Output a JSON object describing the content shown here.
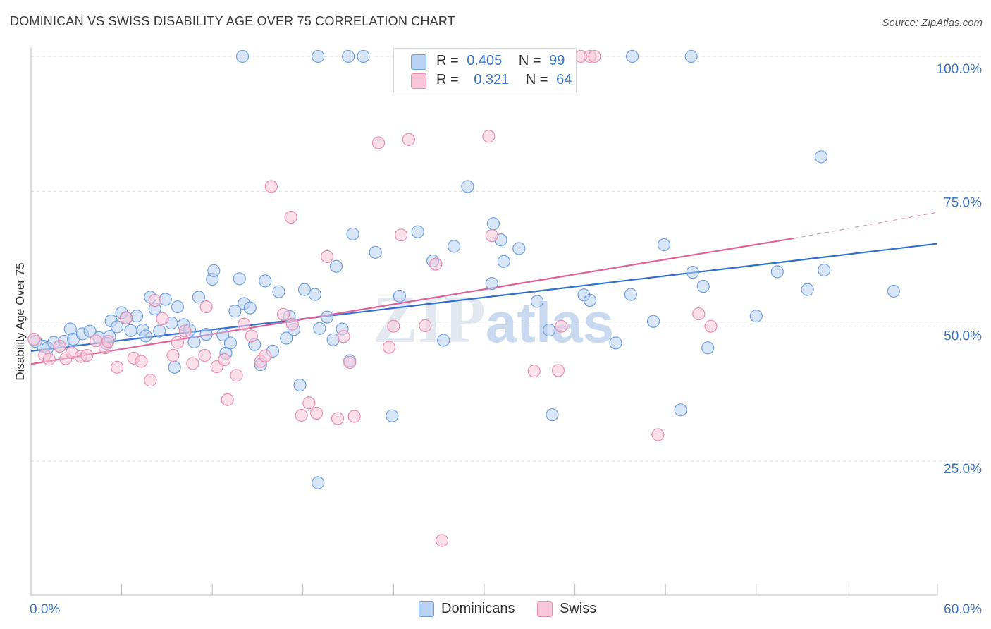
{
  "title": "DOMINICAN VS SWISS DISABILITY AGE OVER 75 CORRELATION CHART",
  "source": "Source: ZipAtlas.com",
  "watermark": "ZIPatlas",
  "legend": {
    "rows": [
      {
        "r_label": "R =",
        "r_value": "0.405",
        "n_label": "N =",
        "n_value": "99"
      },
      {
        "r_label": "R =",
        "r_value": "0.321",
        "n_label": "N =",
        "n_value": "64"
      }
    ]
  },
  "bottom_legend": [
    "Dominicans",
    "Swiss"
  ],
  "chart_data": {
    "type": "scatter",
    "title": "DOMINICAN VS SWISS DISABILITY AGE OVER 75 CORRELATION CHART",
    "xlabel": "",
    "ylabel": "Disability Age Over 75",
    "xlim": [
      0,
      60
    ],
    "ylim": [
      0,
      103
    ],
    "x_tick_labels": [
      "0.0%",
      "60.0%"
    ],
    "y_ticks": [
      25,
      50,
      75,
      100
    ],
    "y_tick_labels": [
      "25.0%",
      "50.0%",
      "75.0%",
      "100.0%"
    ],
    "grid": true,
    "legend_position": "top-center",
    "series": [
      {
        "name": "Dominicans",
        "color": "#6fa0e3",
        "fill": "#b9d1f3",
        "line_color": "#2f6fd0",
        "trend": {
          "x": [
            0,
            60
          ],
          "y": [
            45.4,
            65.3
          ]
        },
        "points": [
          [
            0.3,
            47.2
          ],
          [
            0.8,
            46.3
          ],
          [
            1.1,
            46.0
          ],
          [
            1.5,
            47.0
          ],
          [
            1.9,
            46.3
          ],
          [
            2.2,
            47.2
          ],
          [
            2.6,
            49.5
          ],
          [
            2.8,
            47.6
          ],
          [
            3.4,
            48.6
          ],
          [
            3.9,
            49.1
          ],
          [
            4.5,
            47.9
          ],
          [
            5.0,
            46.8
          ],
          [
            5.2,
            48.1
          ],
          [
            5.3,
            51.0
          ],
          [
            5.7,
            49.9
          ],
          [
            6.0,
            52.5
          ],
          [
            6.3,
            51.6
          ],
          [
            6.6,
            49.2
          ],
          [
            7.0,
            51.9
          ],
          [
            7.4,
            49.3
          ],
          [
            7.6,
            48.2
          ],
          [
            7.9,
            55.4
          ],
          [
            8.2,
            53.2
          ],
          [
            8.5,
            49.1
          ],
          [
            8.9,
            55.0
          ],
          [
            9.3,
            50.6
          ],
          [
            9.5,
            42.4
          ],
          [
            9.7,
            53.6
          ],
          [
            10.1,
            50.3
          ],
          [
            10.5,
            49.3
          ],
          [
            10.8,
            47.1
          ],
          [
            11.1,
            55.4
          ],
          [
            11.6,
            48.5
          ],
          [
            12.0,
            58.7
          ],
          [
            12.1,
            60.3
          ],
          [
            12.7,
            48.4
          ],
          [
            12.9,
            45.0
          ],
          [
            13.2,
            46.9
          ],
          [
            13.5,
            52.8
          ],
          [
            13.8,
            58.8
          ],
          [
            14.1,
            54.2
          ],
          [
            14.5,
            53.4
          ],
          [
            14.8,
            46.6
          ],
          [
            15.2,
            42.9
          ],
          [
            15.5,
            58.4
          ],
          [
            16.0,
            45.4
          ],
          [
            16.4,
            56.4
          ],
          [
            16.9,
            47.8
          ],
          [
            17.1,
            51.8
          ],
          [
            17.4,
            49.4
          ],
          [
            17.8,
            39.1
          ],
          [
            18.1,
            56.8
          ],
          [
            18.8,
            55.9
          ],
          [
            19.1,
            49.6
          ],
          [
            19.6,
            51.7
          ],
          [
            20.0,
            47.5
          ],
          [
            20.2,
            61.1
          ],
          [
            20.6,
            49.5
          ],
          [
            21.1,
            43.6
          ],
          [
            21.3,
            67.1
          ],
          [
            22.8,
            63.7
          ],
          [
            23.9,
            33.4
          ],
          [
            24.4,
            55.6
          ],
          [
            25.6,
            67.5
          ],
          [
            26.6,
            62.1
          ],
          [
            27.3,
            47.4
          ],
          [
            28.0,
            64.8
          ],
          [
            28.9,
            75.9
          ],
          [
            30.5,
            57.9
          ],
          [
            30.6,
            69.0
          ],
          [
            31.1,
            66.0
          ],
          [
            31.3,
            62.0
          ],
          [
            32.3,
            64.4
          ],
          [
            33.5,
            54.6
          ],
          [
            34.3,
            49.3
          ],
          [
            34.5,
            33.6
          ],
          [
            36.6,
            55.8
          ],
          [
            37.0,
            54.8
          ],
          [
            38.7,
            46.9
          ],
          [
            39.7,
            55.9
          ],
          [
            41.2,
            50.9
          ],
          [
            41.9,
            65.1
          ],
          [
            43.0,
            34.5
          ],
          [
            43.8,
            60.0
          ],
          [
            44.5,
            57.4
          ],
          [
            44.8,
            46.0
          ],
          [
            48.0,
            51.9
          ],
          [
            49.4,
            60.1
          ],
          [
            51.4,
            56.8
          ],
          [
            52.3,
            81.4
          ],
          [
            52.5,
            60.4
          ],
          [
            57.1,
            56.5
          ],
          [
            39.8,
            100
          ],
          [
            43.7,
            100
          ],
          [
            14.0,
            100
          ],
          [
            19.0,
            100
          ],
          [
            21.0,
            100
          ],
          [
            22.0,
            100
          ],
          [
            19.0,
            21.0
          ]
        ]
      },
      {
        "name": "Swiss",
        "color": "#ea8fb0",
        "fill": "#f8c6d8",
        "line_color": "#e0619a",
        "trend": {
          "x": [
            0,
            50.5
          ],
          "y": [
            43.0,
            66.3
          ]
        },
        "trend_dashed": {
          "x": [
            50.5,
            60
          ],
          "y": [
            66.3,
            71.1
          ]
        },
        "points": [
          [
            0.2,
            47.6
          ],
          [
            0.9,
            44.6
          ],
          [
            1.2,
            43.9
          ],
          [
            1.9,
            46.3
          ],
          [
            2.3,
            44.0
          ],
          [
            2.7,
            45.1
          ],
          [
            3.3,
            44.4
          ],
          [
            3.7,
            44.6
          ],
          [
            4.3,
            47.3
          ],
          [
            4.9,
            46.0
          ],
          [
            5.1,
            47.2
          ],
          [
            5.7,
            42.4
          ],
          [
            6.3,
            51.5
          ],
          [
            6.8,
            44.1
          ],
          [
            7.3,
            43.5
          ],
          [
            7.9,
            40.0
          ],
          [
            8.2,
            54.8
          ],
          [
            8.7,
            51.4
          ],
          [
            9.4,
            44.6
          ],
          [
            9.7,
            47.0
          ],
          [
            10.2,
            49.1
          ],
          [
            10.7,
            43.1
          ],
          [
            11.5,
            44.6
          ],
          [
            11.6,
            53.6
          ],
          [
            12.3,
            42.5
          ],
          [
            12.8,
            43.8
          ],
          [
            13.0,
            36.4
          ],
          [
            13.6,
            40.9
          ],
          [
            14.1,
            50.4
          ],
          [
            14.6,
            48.2
          ],
          [
            15.2,
            43.5
          ],
          [
            15.5,
            44.5
          ],
          [
            15.9,
            75.9
          ],
          [
            16.7,
            52.2
          ],
          [
            17.2,
            70.2
          ],
          [
            17.3,
            50.4
          ],
          [
            17.9,
            33.5
          ],
          [
            18.4,
            35.8
          ],
          [
            18.9,
            33.9
          ],
          [
            19.6,
            62.9
          ],
          [
            20.3,
            32.9
          ],
          [
            20.7,
            48.1
          ],
          [
            21.1,
            43.3
          ],
          [
            21.4,
            33.3
          ],
          [
            23.0,
            84.0
          ],
          [
            23.7,
            46.1
          ],
          [
            24.0,
            50.0
          ],
          [
            24.5,
            66.9
          ],
          [
            25.0,
            84.6
          ],
          [
            26.1,
            50.1
          ],
          [
            26.8,
            61.5
          ],
          [
            27.2,
            10.3
          ],
          [
            30.3,
            85.2
          ],
          [
            30.5,
            66.8
          ],
          [
            33.3,
            41.7
          ],
          [
            34.9,
            41.8
          ],
          [
            35.1,
            50.0
          ],
          [
            36.4,
            100
          ],
          [
            37.0,
            100
          ],
          [
            37.3,
            100
          ],
          [
            41.5,
            29.9
          ],
          [
            44.2,
            52.3
          ],
          [
            45.0,
            50.0
          ]
        ]
      }
    ]
  }
}
